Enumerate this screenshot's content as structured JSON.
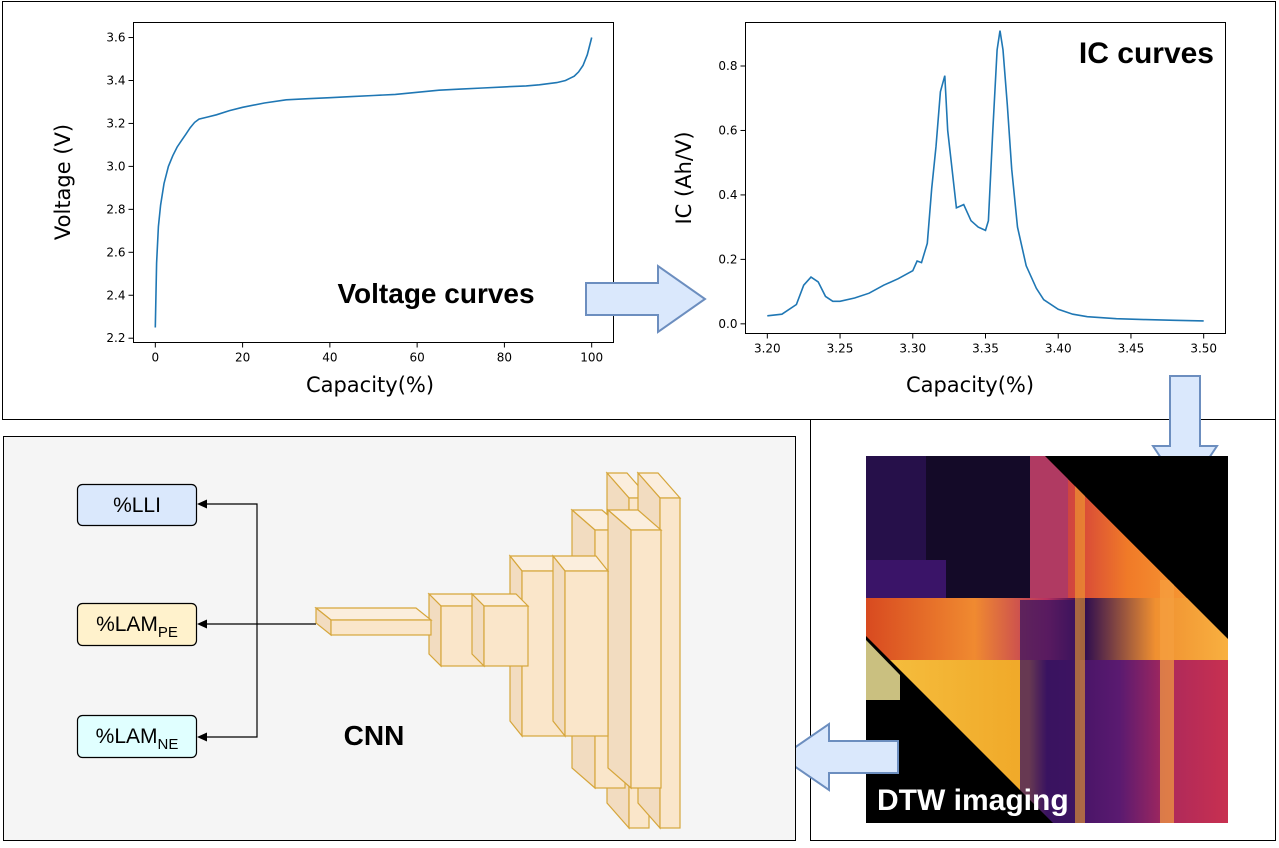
{
  "colors": {
    "curve": "#1f77b4",
    "arrow_fill": "#dae8fc",
    "arrow_stroke": "#6c8ebf",
    "cnn_fill": "#fae6ca",
    "cnn_stroke": "#d6a63b",
    "panel_bg": "#f5f5f5",
    "out_lli": "#dae8fc",
    "out_pe": "#fff2cc",
    "out_ne": "#e0ffff"
  },
  "voltage_panel": {
    "label": "Voltage curves",
    "xlabel": "Capacity(%)",
    "ylabel": "Voltage (V)",
    "xticks": [
      "0",
      "20",
      "40",
      "60",
      "80",
      "100"
    ],
    "yticks": [
      "2.2",
      "2.4",
      "2.6",
      "2.8",
      "3.0",
      "3.2",
      "3.4",
      "3.6"
    ]
  },
  "ic_panel": {
    "label": "IC curves",
    "xlabel": "Capacity(%)",
    "ylabel": "IC (Ah/V)",
    "xticks": [
      "3.20",
      "3.25",
      "3.30",
      "3.35",
      "3.40",
      "3.45",
      "3.50"
    ],
    "yticks": [
      "0.0",
      "0.2",
      "0.4",
      "0.6",
      "0.8"
    ]
  },
  "dtw": {
    "label": "DTW imaging"
  },
  "cnn": {
    "label": "CNN",
    "outputs": [
      {
        "base": "%LLI",
        "sub": ""
      },
      {
        "base": "%LAM",
        "sub": "PE"
      },
      {
        "base": "%LAM",
        "sub": "NE"
      }
    ]
  },
  "chart_data": [
    {
      "type": "line",
      "xlabel": "Capacity(%)",
      "ylabel": "Voltage (V)",
      "xlim": [
        -5,
        105
      ],
      "ylim": [
        2.18,
        3.67
      ],
      "x": [
        0,
        0.3,
        0.7,
        1.2,
        2,
        3,
        4,
        5,
        6,
        7,
        8,
        9,
        10,
        12,
        14,
        17,
        20,
        25,
        30,
        35,
        40,
        45,
        50,
        55,
        60,
        65,
        70,
        75,
        80,
        85,
        88,
        90,
        92,
        94,
        95,
        96,
        97,
        98,
        99,
        100
      ],
      "series": [
        {
          "values": [
            2.25,
            2.55,
            2.72,
            2.82,
            2.92,
            3.0,
            3.05,
            3.09,
            3.12,
            3.15,
            3.18,
            3.205,
            3.22,
            3.23,
            3.24,
            3.26,
            3.275,
            3.295,
            3.31,
            3.315,
            3.32,
            3.325,
            3.33,
            3.335,
            3.345,
            3.355,
            3.36,
            3.365,
            3.37,
            3.375,
            3.38,
            3.385,
            3.39,
            3.4,
            3.41,
            3.42,
            3.44,
            3.47,
            3.52,
            3.6
          ]
        }
      ]
    },
    {
      "type": "line",
      "xlabel": "Capacity(%)",
      "ylabel": "IC (Ah/V)",
      "xlim": [
        3.185,
        3.515
      ],
      "ylim": [
        -0.03,
        0.935
      ],
      "x": [
        3.2,
        3.21,
        3.22,
        3.225,
        3.23,
        3.235,
        3.24,
        3.245,
        3.25,
        3.26,
        3.27,
        3.28,
        3.29,
        3.3,
        3.303,
        3.306,
        3.31,
        3.313,
        3.316,
        3.319,
        3.322,
        3.324,
        3.326,
        3.33,
        3.335,
        3.34,
        3.345,
        3.35,
        3.352,
        3.355,
        3.358,
        3.36,
        3.362,
        3.365,
        3.368,
        3.372,
        3.378,
        3.385,
        3.39,
        3.4,
        3.41,
        3.42,
        3.44,
        3.46,
        3.48,
        3.5
      ],
      "series": [
        {
          "values": [
            0.025,
            0.03,
            0.06,
            0.12,
            0.145,
            0.13,
            0.085,
            0.07,
            0.07,
            0.08,
            0.095,
            0.12,
            0.14,
            0.165,
            0.195,
            0.19,
            0.25,
            0.42,
            0.55,
            0.72,
            0.77,
            0.6,
            0.52,
            0.36,
            0.37,
            0.32,
            0.3,
            0.29,
            0.32,
            0.6,
            0.85,
            0.91,
            0.85,
            0.68,
            0.48,
            0.3,
            0.18,
            0.11,
            0.075,
            0.045,
            0.03,
            0.022,
            0.016,
            0.013,
            0.011,
            0.009
          ]
        }
      ]
    }
  ]
}
